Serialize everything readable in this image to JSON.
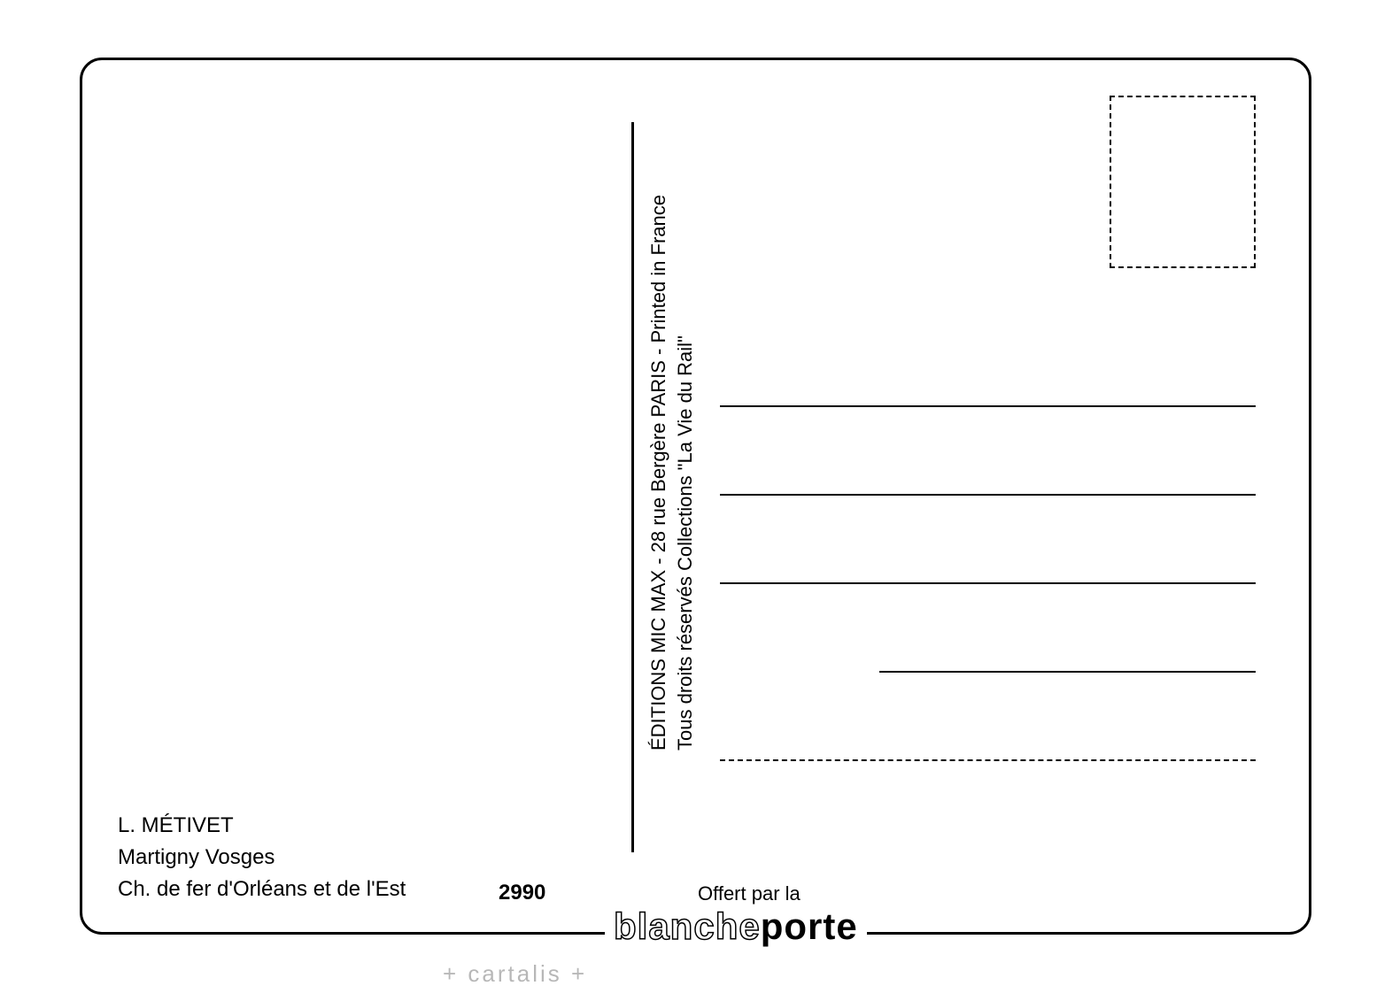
{
  "card": {
    "border_color": "#000000",
    "border_radius": 25,
    "background_color": "#ffffff"
  },
  "stamp_box": {
    "border_style": "dashed",
    "border_color": "#000000"
  },
  "divider": {
    "color": "#000000"
  },
  "vertical_text": {
    "line1": "ÉDITIONS MIC MAX - 28 rue Bergère PARIS - Printed in France",
    "line2": "Tous droits réservés        Collections \"La Vie du Rail\"",
    "font_size": 22,
    "color": "#000000"
  },
  "address_section": {
    "line_color": "#000000",
    "line_count": 5,
    "last_line_style": "dashed"
  },
  "bottom_left": {
    "artist": "L. MÉTIVET",
    "location": "Martigny Vosges",
    "railway": "Ch. de fer d'Orléans et de l'Est",
    "font_size": 24,
    "color": "#000000"
  },
  "ref_number": "2990",
  "offered_by": "Offert par la",
  "brand": {
    "part1": "blanche",
    "part2": "porte",
    "font_size": 42,
    "color": "#000000"
  },
  "watermark": "+ cartalis +"
}
